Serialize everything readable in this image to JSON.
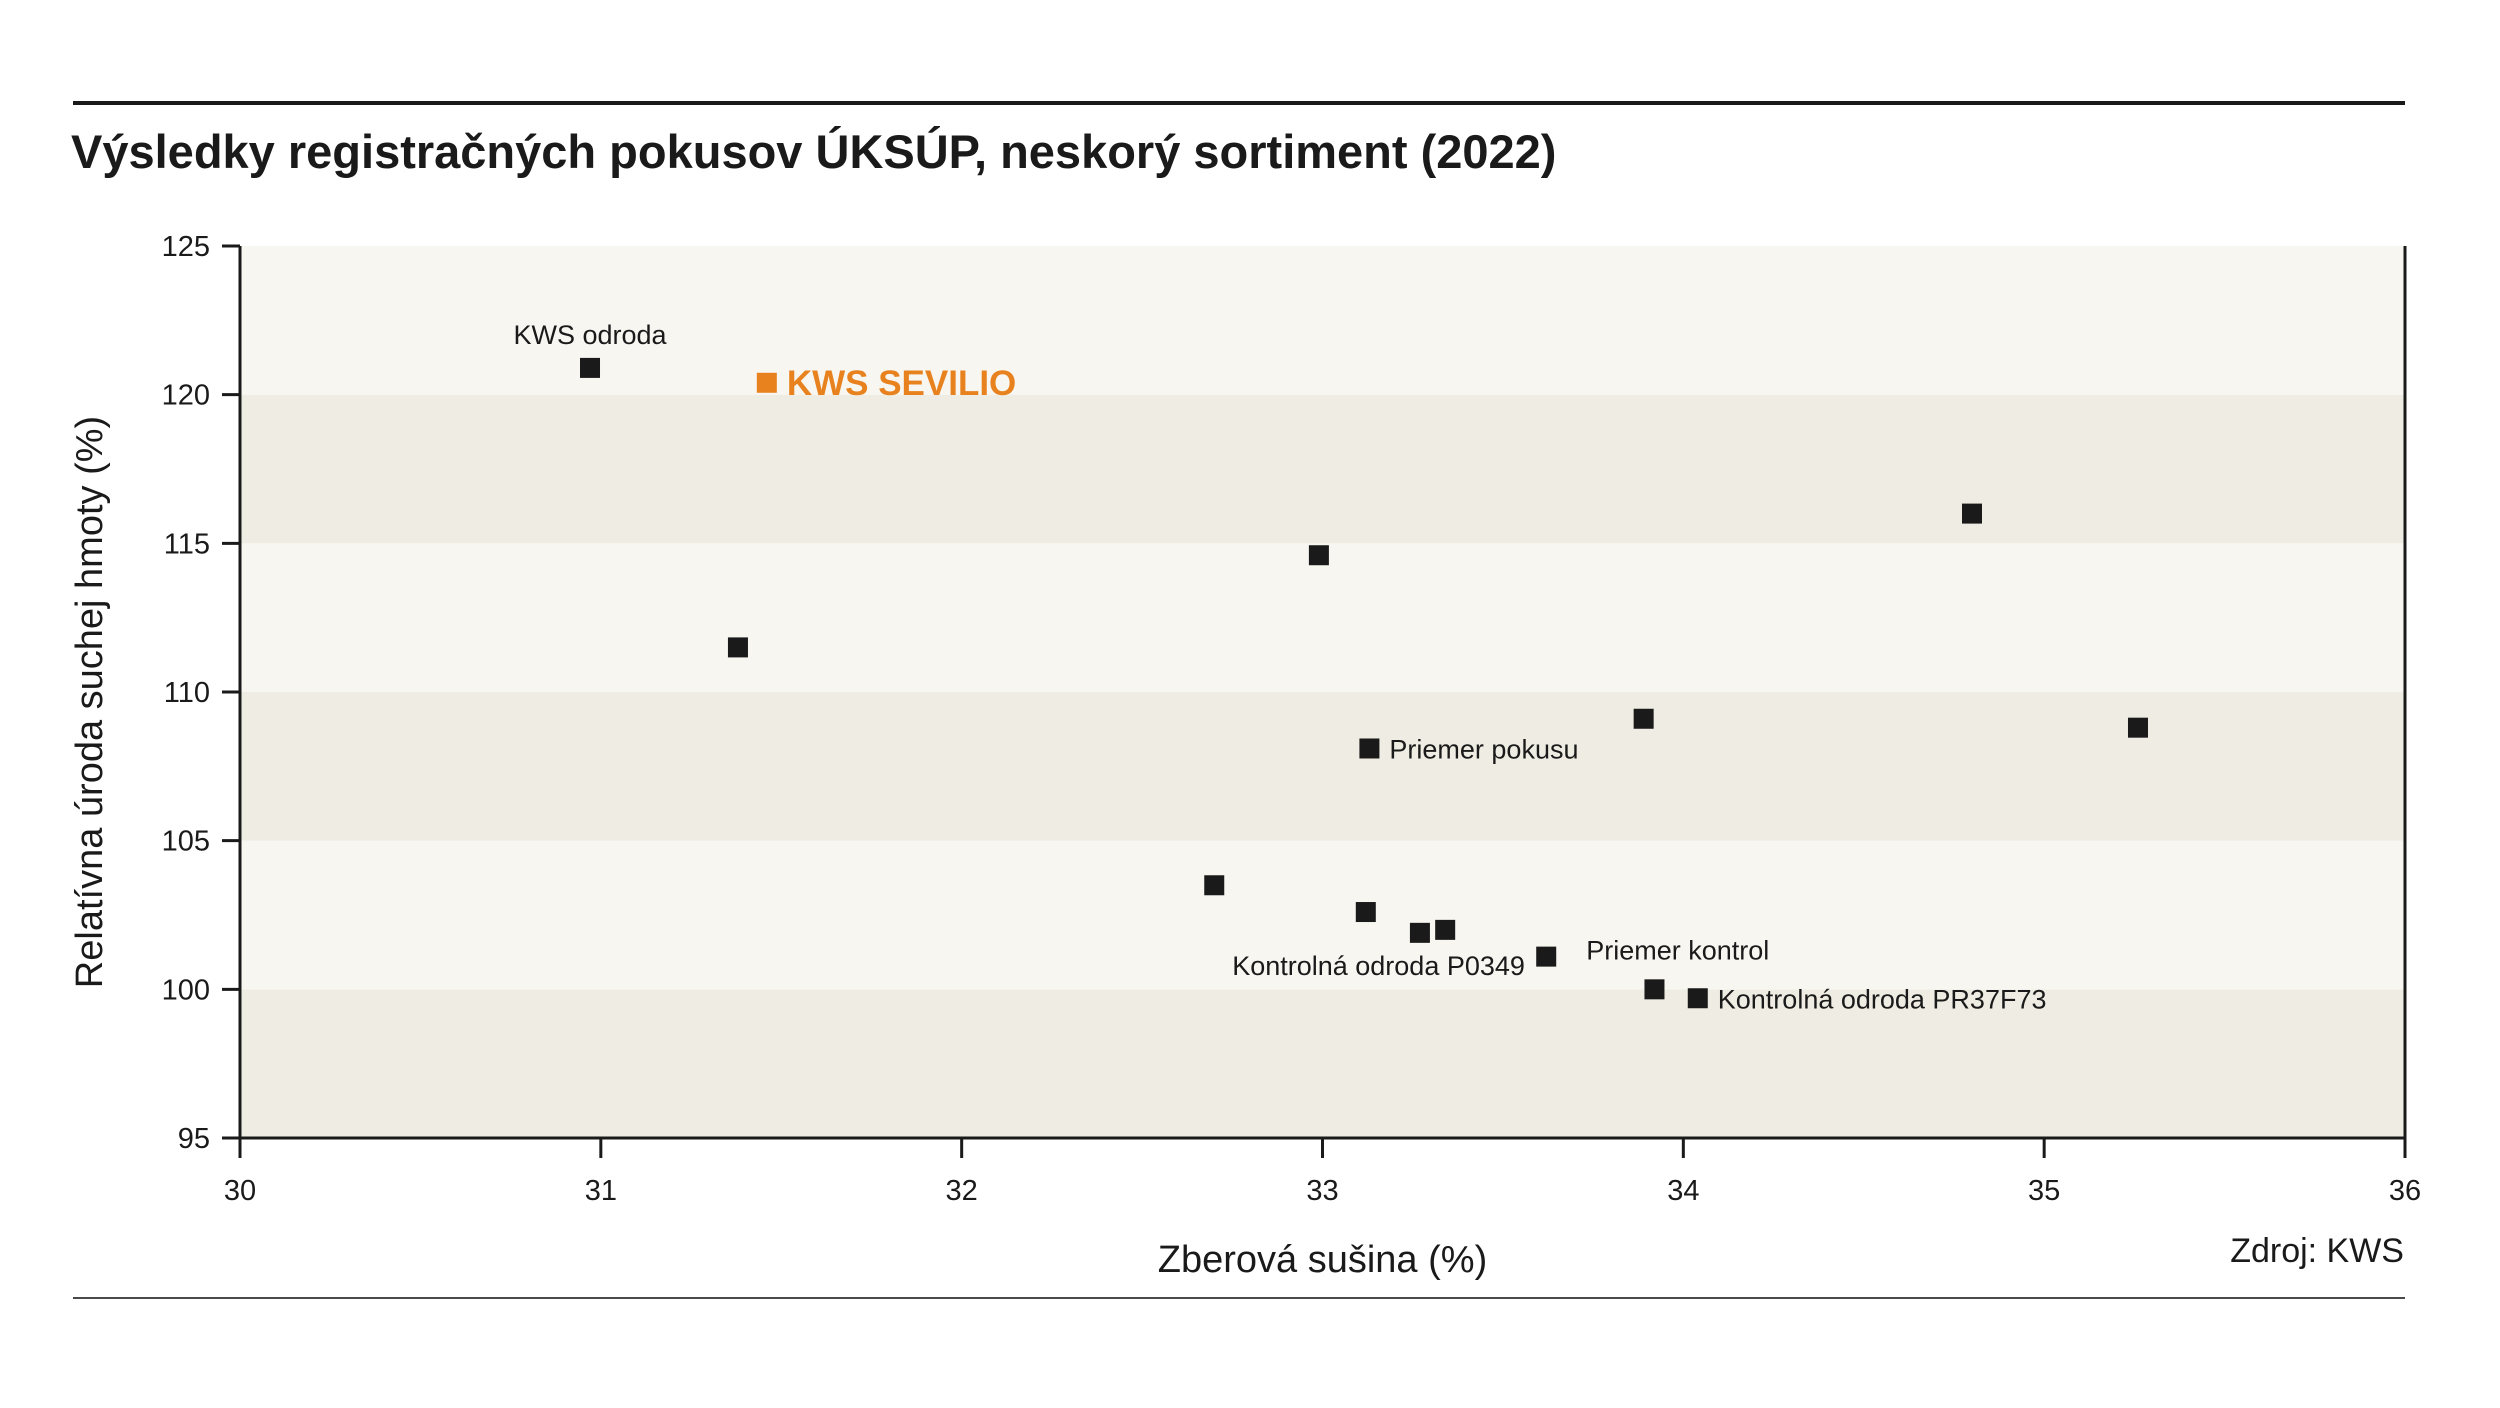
{
  "chart_data": {
    "type": "scatter",
    "title": "Výsledky registračných pokusov ÚKSÚP, neskorý sortiment (2022)",
    "xlabel": "Zberová sušina (%)",
    "ylabel": "Relatívna úroda suchej hmoty  (%)",
    "xlim": [
      30,
      36
    ],
    "ylim": [
      95,
      125
    ],
    "xticks": [
      "30",
      "31",
      "32",
      "33",
      "34",
      "35",
      "36"
    ],
    "yticks": [
      "95",
      "100",
      "105",
      "110",
      "115",
      "120",
      "125"
    ],
    "grid": false,
    "source": "Zdroj: KWS",
    "colors": {
      "marker": "#1a1a1a",
      "highlight": "#e8821e",
      "band_light": "#f7f6f1",
      "band_dark": "#efede3"
    },
    "points": [
      {
        "x": 30.97,
        "y": 120.9,
        "label": "KWS odroda",
        "label_pos": "above"
      },
      {
        "x": 31.46,
        "y": 120.4,
        "label": "KWS SEVILIO",
        "label_pos": "right",
        "highlight": true
      },
      {
        "x": 31.38,
        "y": 111.5,
        "label": ""
      },
      {
        "x": 32.99,
        "y": 114.6,
        "label": ""
      },
      {
        "x": 34.8,
        "y": 116.0,
        "label": ""
      },
      {
        "x": 33.89,
        "y": 109.1,
        "label": ""
      },
      {
        "x": 35.26,
        "y": 108.8,
        "label": ""
      },
      {
        "x": 33.13,
        "y": 108.1,
        "label": "Priemer pokusu",
        "label_pos": "right"
      },
      {
        "x": 32.7,
        "y": 103.5,
        "label": ""
      },
      {
        "x": 33.12,
        "y": 102.6,
        "label": ""
      },
      {
        "x": 33.27,
        "y": 101.9,
        "label": "Kontrolná odroda P0349",
        "label_pos": "below-left"
      },
      {
        "x": 33.34,
        "y": 102.0,
        "label": ""
      },
      {
        "x": 33.62,
        "y": 101.1,
        "label": "Priemer kontrol",
        "label_pos": "right-up"
      },
      {
        "x": 33.92,
        "y": 100.0,
        "label": ""
      },
      {
        "x": 34.04,
        "y": 99.7,
        "label": "Kontrolná odroda PR37F73",
        "label_pos": "right"
      }
    ]
  }
}
